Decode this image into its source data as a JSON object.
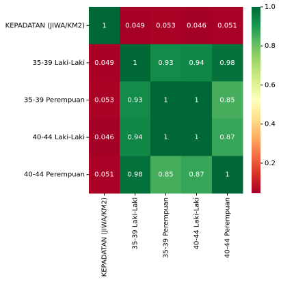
{
  "chart_data": {
    "type": "heatmap",
    "categories": [
      "KEPADATAN (JIWA/KM2)",
      "35-39 Laki-Laki",
      "35-39 Perempuan",
      "40-44 Laki-Laki",
      "40-44 Perempuan"
    ],
    "values": [
      [
        1,
        0.049,
        0.053,
        0.046,
        0.051
      ],
      [
        0.049,
        1,
        0.93,
        0.94,
        0.98
      ],
      [
        0.053,
        0.93,
        1,
        1,
        0.85
      ],
      [
        0.046,
        0.94,
        1,
        1,
        0.87
      ],
      [
        0.051,
        0.98,
        0.85,
        0.87,
        1
      ]
    ],
    "colormap": "RdYlGn",
    "clim": [
      0.046,
      1
    ],
    "cticks": [
      0.2,
      0.4,
      0.6,
      0.8,
      {
        "value": 1,
        "label": "1.0"
      }
    ]
  }
}
